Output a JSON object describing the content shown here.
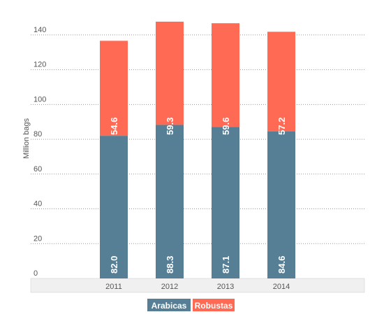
{
  "chart_data": {
    "type": "bar",
    "stacked": true,
    "categories": [
      "2011",
      "2012",
      "2013",
      "2014"
    ],
    "series": [
      {
        "name": "Arabicas",
        "values": [
          82.0,
          88.3,
          87.1,
          84.6
        ],
        "labels": [
          "82.0",
          "88.3",
          "87.1",
          "84.6"
        ],
        "color": "#567f95"
      },
      {
        "name": "Robustas",
        "values": [
          54.6,
          59.3,
          59.6,
          57.2
        ],
        "labels": [
          "54.6",
          "59.3",
          "59.6",
          "57.2"
        ],
        "color": "#ff6a55"
      }
    ],
    "ylabel": "Million bags",
    "yticks": [
      0,
      20,
      40,
      60,
      80,
      100,
      120,
      140
    ],
    "ylim": [
      0,
      150
    ],
    "grid": true,
    "legend_position": "bottom-center"
  }
}
